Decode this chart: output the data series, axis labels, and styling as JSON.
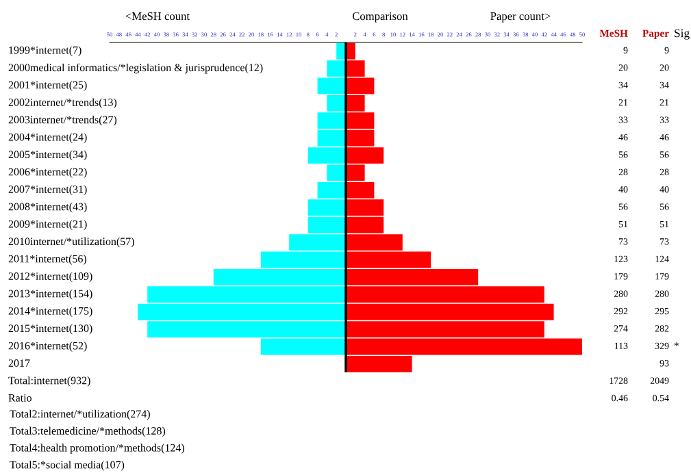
{
  "chart_data": [
    {
      "type": "bar",
      "orientation": "horizontal",
      "stacked": true,
      "title": "Comparison",
      "categories": [
        "1999*internet(7)",
        "2000medical informatics/*legislation & jurisprudence(12)",
        "2001*internet(25)",
        "2002internet/*trends(13)",
        "2003internet/*trends(27)",
        "2004*internet(24)",
        "2005*internet(34)",
        "2006*internet(22)",
        "2007*internet(31)",
        "2008*internet(43)",
        "2009*internet(21)",
        "2010internet/*utilization(57)",
        "2011*internet(56)",
        "2012*internet(109)",
        "2013*internet(154)",
        "2014*internet(175)",
        "2015*internet(130)",
        "2016*internet(52)",
        "2017",
        "Total:internet(932)",
        "Ratio"
      ],
      "series": [
        {
          "color": "#00ffff",
          "values": [
            -2,
            -4,
            -6,
            -4,
            -6,
            -6,
            -8,
            -4,
            -6,
            -8,
            -8,
            -12,
            -18,
            -28,
            -42,
            -44,
            -42,
            -18,
            null,
            null,
            null
          ]
        },
        {
          "color": "#ff0000",
          "values": [
            2,
            4,
            6,
            4,
            6,
            6,
            8,
            4,
            6,
            8,
            8,
            12,
            18,
            28,
            42,
            44,
            42,
            50,
            14,
            null,
            null
          ]
        }
      ],
      "xlim": [
        -50,
        50
      ],
      "xticks": [
        {
          "value": -50,
          "label": "50"
        },
        {
          "value": -48,
          "label": "48"
        },
        {
          "value": -46,
          "label": "46"
        },
        {
          "value": -44,
          "label": "44"
        },
        {
          "value": -42,
          "label": "42"
        },
        {
          "value": -40,
          "label": "40"
        },
        {
          "value": -38,
          "label": "38"
        },
        {
          "value": -36,
          "label": "36"
        },
        {
          "value": -34,
          "label": "34"
        },
        {
          "value": -32,
          "label": "32"
        },
        {
          "value": -30,
          "label": "30"
        },
        {
          "value": -28,
          "label": "28"
        },
        {
          "value": -26,
          "label": "26"
        },
        {
          "value": -24,
          "label": "24"
        },
        {
          "value": -22,
          "label": "22"
        },
        {
          "value": -20,
          "label": "20"
        },
        {
          "value": -18,
          "label": "18"
        },
        {
          "value": -16,
          "label": "16"
        },
        {
          "value": -14,
          "label": "14"
        },
        {
          "value": -12,
          "label": "12"
        },
        {
          "value": -10,
          "label": "10"
        },
        {
          "value": -8,
          "label": "8"
        },
        {
          "value": -6,
          "label": "6"
        },
        {
          "value": -4,
          "label": "4"
        },
        {
          "value": -2,
          "label": "2"
        },
        2,
        4,
        6,
        8,
        10,
        12,
        14,
        16,
        18,
        20,
        22,
        24,
        26,
        28,
        30,
        32,
        34,
        36,
        38,
        40,
        42,
        44,
        46,
        48,
        50
      ],
      "ref_lines": [
        {
          "axis": "x",
          "value": 0,
          "color": "#000000"
        }
      ],
      "annotations": [
        "<MeSH count",
        "Paper count>",
        "Total2:internet/*utilization(274)",
        "Total3:telemedicine/*methods(128)",
        "Total4:health promotion/*methods(124)",
        "Total5:*social media(107)"
      ]
    },
    {
      "type": "other",
      "annotations": [
        "MeSH",
        "Paper",
        "Sig",
        "9",
        "9",
        "20",
        "20",
        "34",
        "34",
        "21",
        "21",
        "33",
        "33",
        "46",
        "46",
        "56",
        "56",
        "28",
        "28",
        "40",
        "40",
        "56",
        "56",
        "51",
        "51",
        "73",
        "73",
        "123",
        "124",
        "179",
        "179",
        "280",
        "280",
        "292",
        "295",
        "274",
        "282",
        "113",
        "329",
        "*",
        "93",
        "1728",
        "2049",
        "0.46",
        "0.54"
      ]
    }
  ]
}
